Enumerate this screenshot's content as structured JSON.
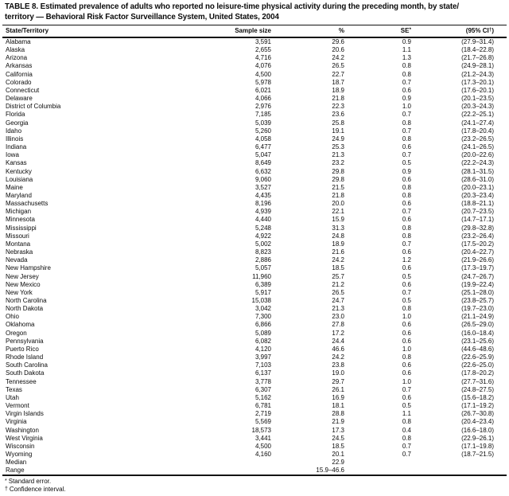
{
  "title": {
    "line1": "TABLE 8. Estimated prevalence of adults who reported no leisure-time physical activity during the preceding month, by state/",
    "line2": "territory — Behavioral Risk Factor Surveillance System, United States, 2004"
  },
  "table": {
    "columns": [
      {
        "label": "State/Territory"
      },
      {
        "label": "Sample size"
      },
      {
        "label": "%"
      },
      {
        "label": "SE",
        "sup": "*"
      },
      {
        "label": "(95% CI",
        "sup": "†",
        "suffix": ")"
      }
    ],
    "rows": [
      {
        "state": "Alabama",
        "sample": "3,591",
        "pct": "29.6",
        "se": "0.9",
        "ci": "(27.9–31.4)"
      },
      {
        "state": "Alaska",
        "sample": "2,655",
        "pct": "20.6",
        "se": "1.1",
        "ci": "(18.4–22.8)"
      },
      {
        "state": "Arizona",
        "sample": "4,716",
        "pct": "24.2",
        "se": "1.3",
        "ci": "(21.7–26.8)"
      },
      {
        "state": "Arkansas",
        "sample": "4,076",
        "pct": "26.5",
        "se": "0.8",
        "ci": "(24.9–28.1)"
      },
      {
        "state": "California",
        "sample": "4,500",
        "pct": "22.7",
        "se": "0.8",
        "ci": "(21.2–24.3)"
      },
      {
        "state": "Colorado",
        "sample": "5,978",
        "pct": "18.7",
        "se": "0.7",
        "ci": "(17.3–20.1)"
      },
      {
        "state": "Connecticut",
        "sample": "6,021",
        "pct": "18.9",
        "se": "0.6",
        "ci": "(17.6–20.1)"
      },
      {
        "state": "Delaware",
        "sample": "4,066",
        "pct": "21.8",
        "se": "0.9",
        "ci": "(20.1–23.5)"
      },
      {
        "state": "District of Columbia",
        "sample": "2,976",
        "pct": "22.3",
        "se": "1.0",
        "ci": "(20.3–24.3)"
      },
      {
        "state": "Florida",
        "sample": "7,185",
        "pct": "23.6",
        "se": "0.7",
        "ci": "(22.2–25.1)"
      },
      {
        "state": "Georgia",
        "sample": "5,039",
        "pct": "25.8",
        "se": "0.8",
        "ci": "(24.1–27.4)"
      },
      {
        "state": "Idaho",
        "sample": "5,260",
        "pct": "19.1",
        "se": "0.7",
        "ci": "(17.8–20.4)"
      },
      {
        "state": "Illinois",
        "sample": "4,058",
        "pct": "24.9",
        "se": "0.8",
        "ci": "(23.2–26.5)"
      },
      {
        "state": "Indiana",
        "sample": "6,477",
        "pct": "25.3",
        "se": "0.6",
        "ci": "(24.1–26.5)"
      },
      {
        "state": "Iowa",
        "sample": "5,047",
        "pct": "21.3",
        "se": "0.7",
        "ci": "(20.0–22.6)"
      },
      {
        "state": "Kansas",
        "sample": "8,649",
        "pct": "23.2",
        "se": "0.5",
        "ci": "(22.2–24.3)"
      },
      {
        "state": "Kentucky",
        "sample": "6,632",
        "pct": "29.8",
        "se": "0.9",
        "ci": "(28.1–31.5)"
      },
      {
        "state": "Louisiana",
        "sample": "9,060",
        "pct": "29.8",
        "se": "0.6",
        "ci": "(28.6–31.0)"
      },
      {
        "state": "Maine",
        "sample": "3,527",
        "pct": "21.5",
        "se": "0.8",
        "ci": "(20.0–23.1)"
      },
      {
        "state": "Maryland",
        "sample": "4,435",
        "pct": "21.8",
        "se": "0.8",
        "ci": "(20.3–23.4)"
      },
      {
        "state": "Massachusetts",
        "sample": "8,196",
        "pct": "20.0",
        "se": "0.6",
        "ci": "(18.8–21.1)"
      },
      {
        "state": "Michigan",
        "sample": "4,939",
        "pct": "22.1",
        "se": "0.7",
        "ci": "(20.7–23.5)"
      },
      {
        "state": "Minnesota",
        "sample": "4,440",
        "pct": "15.9",
        "se": "0.6",
        "ci": "(14.7–17.1)"
      },
      {
        "state": "Mississippi",
        "sample": "5,248",
        "pct": "31.3",
        "se": "0.8",
        "ci": "(29.8–32.8)"
      },
      {
        "state": "Missouri",
        "sample": "4,922",
        "pct": "24.8",
        "se": "0.8",
        "ci": "(23.2–26.4)"
      },
      {
        "state": "Montana",
        "sample": "5,002",
        "pct": "18.9",
        "se": "0.7",
        "ci": "(17.5–20.2)"
      },
      {
        "state": "Nebraska",
        "sample": "8,823",
        "pct": "21.6",
        "se": "0.6",
        "ci": "(20.4–22.7)"
      },
      {
        "state": "Nevada",
        "sample": "2,886",
        "pct": "24.2",
        "se": "1.2",
        "ci": "(21.9–26.6)"
      },
      {
        "state": "New Hampshire",
        "sample": "5,057",
        "pct": "18.5",
        "se": "0.6",
        "ci": "(17.3–19.7)"
      },
      {
        "state": "New Jersey",
        "sample": "11,960",
        "pct": "25.7",
        "se": "0.5",
        "ci": "(24.7–26.7)"
      },
      {
        "state": "New Mexico",
        "sample": "6,389",
        "pct": "21.2",
        "se": "0.6",
        "ci": "(19.9–22.4)"
      },
      {
        "state": "New York",
        "sample": "5,917",
        "pct": "26.5",
        "se": "0.7",
        "ci": "(25.1–28.0)"
      },
      {
        "state": "North Carolina",
        "sample": "15,038",
        "pct": "24.7",
        "se": "0.5",
        "ci": "(23.8–25.7)"
      },
      {
        "state": "North Dakota",
        "sample": "3,042",
        "pct": "21.3",
        "se": "0.8",
        "ci": "(19.7–23.0)"
      },
      {
        "state": "Ohio",
        "sample": "7,300",
        "pct": "23.0",
        "se": "1.0",
        "ci": "(21.1–24.9)"
      },
      {
        "state": "Oklahoma",
        "sample": "6,866",
        "pct": "27.8",
        "se": "0.6",
        "ci": "(26.5–29.0)"
      },
      {
        "state": "Oregon",
        "sample": "5,089",
        "pct": "17.2",
        "se": "0.6",
        "ci": "(16.0–18.4)"
      },
      {
        "state": "Pennsylvania",
        "sample": "6,082",
        "pct": "24.4",
        "se": "0.6",
        "ci": "(23.1–25.6)"
      },
      {
        "state": "Puerto Rico",
        "sample": "4,120",
        "pct": "46.6",
        "se": "1.0",
        "ci": "(44.6–48.6)"
      },
      {
        "state": "Rhode Island",
        "sample": "3,997",
        "pct": "24.2",
        "se": "0.8",
        "ci": "(22.6–25.9)"
      },
      {
        "state": "South Carolina",
        "sample": "7,103",
        "pct": "23.8",
        "se": "0.6",
        "ci": "(22.6–25.0)"
      },
      {
        "state": "South Dakota",
        "sample": "6,137",
        "pct": "19.0",
        "se": "0.6",
        "ci": "(17.8–20.2)"
      },
      {
        "state": "Tennessee",
        "sample": "3,778",
        "pct": "29.7",
        "se": "1.0",
        "ci": "(27.7–31.6)"
      },
      {
        "state": "Texas",
        "sample": "6,307",
        "pct": "26.1",
        "se": "0.7",
        "ci": "(24.8–27.5)"
      },
      {
        "state": "Utah",
        "sample": "5,162",
        "pct": "16.9",
        "se": "0.6",
        "ci": "(15.6–18.2)"
      },
      {
        "state": "Vermont",
        "sample": "6,781",
        "pct": "18.1",
        "se": "0.5",
        "ci": "(17.1–19.2)"
      },
      {
        "state": "Virgin Islands",
        "sample": "2,719",
        "pct": "28.8",
        "se": "1.1",
        "ci": "(26.7–30.8)"
      },
      {
        "state": "Virginia",
        "sample": "5,569",
        "pct": "21.9",
        "se": "0.8",
        "ci": "(20.4–23.4)"
      },
      {
        "state": "Washington",
        "sample": "18,573",
        "pct": "17.3",
        "se": "0.4",
        "ci": "(16.6–18.0)"
      },
      {
        "state": "West Virginia",
        "sample": "3,441",
        "pct": "24.5",
        "se": "0.8",
        "ci": "(22.9–26.1)"
      },
      {
        "state": "Wisconsin",
        "sample": "4,500",
        "pct": "18.5",
        "se": "0.7",
        "ci": "(17.1–19.8)"
      },
      {
        "state": "Wyoming",
        "sample": "4,160",
        "pct": "20.1",
        "se": "0.7",
        "ci": "(18.7–21.5)"
      },
      {
        "state": "Median",
        "sample": "",
        "pct": "22.9",
        "se": "",
        "ci": ""
      },
      {
        "state": "Range",
        "sample": "",
        "pct": "15.9–46.6",
        "se": "",
        "ci": ""
      }
    ]
  },
  "footnotes": [
    {
      "symbol": "*",
      "text": "Standard error."
    },
    {
      "symbol": "†",
      "text": "Confidence interval."
    }
  ]
}
